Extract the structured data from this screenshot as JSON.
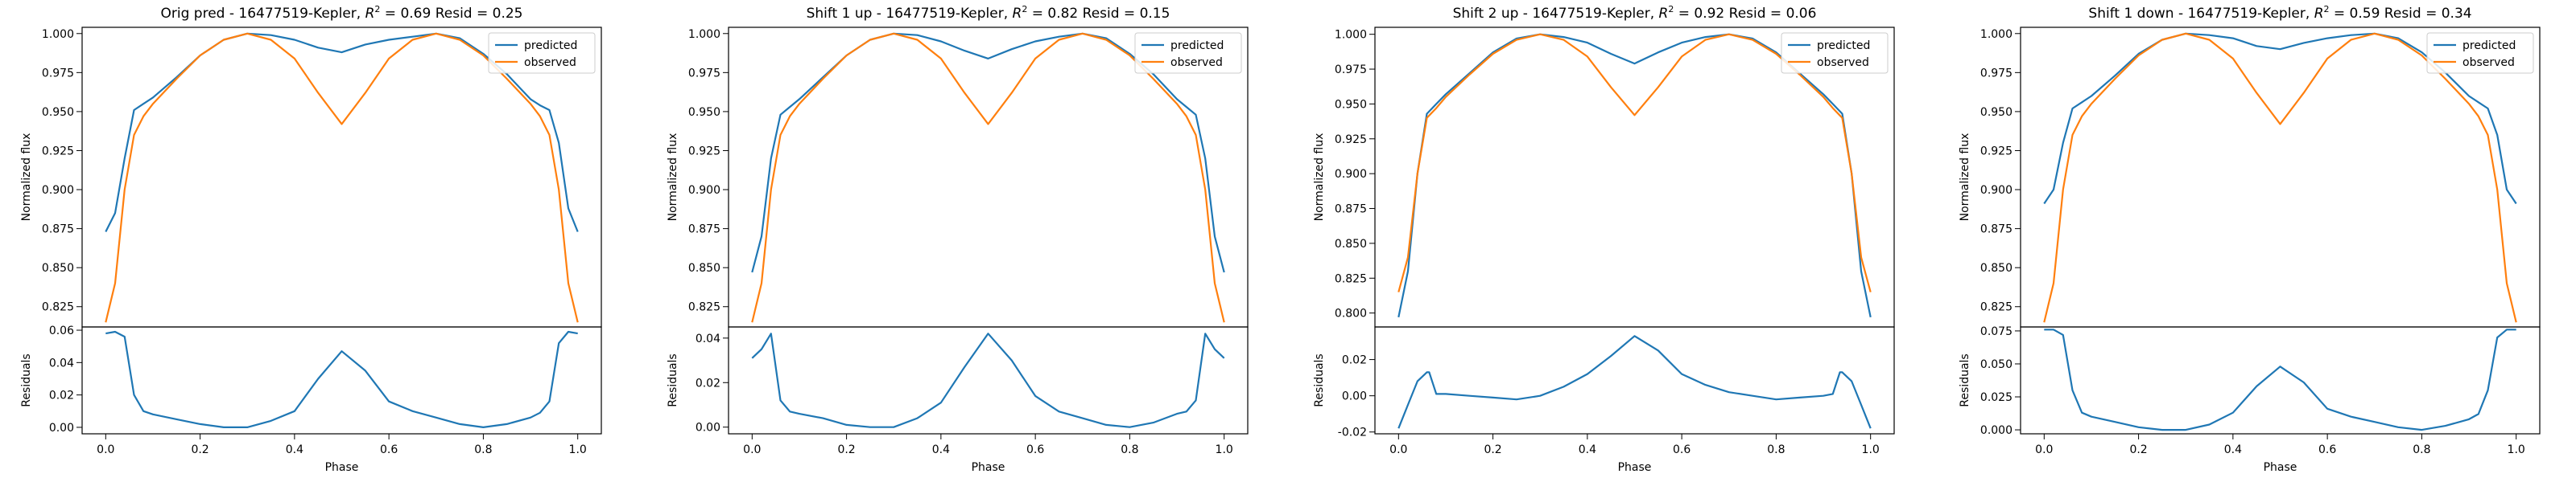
{
  "figure": {
    "phase_label": "Phase",
    "flux_label": "Normalized flux",
    "resid_label": "Residuals",
    "legend": [
      "predicted",
      "observed"
    ]
  },
  "colors": {
    "predicted": "#1f77b4",
    "observed": "#ff7f0e",
    "axes": "#000000"
  },
  "chart_data": [
    {
      "type": "line",
      "title": "Orig pred - 16477519-Kepler, R² = 0.69 Resid = 0.25",
      "title_parts": {
        "pre": "Orig pred - 16477519-Kepler, ",
        "r2": "= 0.69 Resid = 0.25"
      },
      "xlabel": "Phase",
      "ylabel": "Normalized flux",
      "xlim": [
        -0.05,
        1.05
      ],
      "xticks": [
        "0.0",
        "0.2",
        "0.4",
        "0.6",
        "0.8",
        "1.0"
      ],
      "ylim": [
        0.812,
        1.004
      ],
      "yticks": [
        "0.825",
        "0.850",
        "0.875",
        "0.900",
        "0.925",
        "0.950",
        "0.975",
        "1.000"
      ],
      "legend_position": "upper right",
      "x": [
        0.0,
        0.02,
        0.04,
        0.06,
        0.08,
        0.1,
        0.15,
        0.2,
        0.25,
        0.3,
        0.35,
        0.4,
        0.45,
        0.5,
        0.55,
        0.6,
        0.65,
        0.7,
        0.75,
        0.8,
        0.85,
        0.9,
        0.92,
        0.94,
        0.96,
        0.98,
        1.0
      ],
      "series": [
        {
          "name": "predicted",
          "values": [
            0.873,
            0.885,
            0.92,
            0.951,
            0.955,
            0.959,
            0.972,
            0.986,
            0.996,
            1.0,
            0.999,
            0.996,
            0.991,
            0.988,
            0.993,
            0.996,
            0.998,
            1.0,
            0.997,
            0.987,
            0.974,
            0.958,
            0.954,
            0.951,
            0.93,
            0.888,
            0.873
          ]
        },
        {
          "name": "observed",
          "values": [
            0.815,
            0.84,
            0.9,
            0.935,
            0.947,
            0.955,
            0.971,
            0.986,
            0.996,
            1.0,
            0.996,
            0.984,
            0.962,
            0.942,
            0.962,
            0.984,
            0.996,
            1.0,
            0.996,
            0.986,
            0.971,
            0.955,
            0.947,
            0.935,
            0.9,
            0.84,
            0.815
          ]
        }
      ],
      "residuals": {
        "ylabel": "Residuals",
        "ylim": [
          -0.004,
          0.062
        ],
        "yticks": [
          "0.00",
          "0.02",
          "0.04",
          "0.06"
        ],
        "x": [
          0.0,
          0.02,
          0.04,
          0.06,
          0.08,
          0.1,
          0.15,
          0.2,
          0.25,
          0.3,
          0.35,
          0.4,
          0.45,
          0.5,
          0.55,
          0.6,
          0.65,
          0.7,
          0.75,
          0.8,
          0.85,
          0.9,
          0.92,
          0.94,
          0.96,
          0.98,
          1.0
        ],
        "values": [
          0.058,
          0.059,
          0.056,
          0.02,
          0.01,
          0.008,
          0.005,
          0.002,
          0.0,
          0.0,
          0.004,
          0.01,
          0.03,
          0.047,
          0.035,
          0.016,
          0.01,
          0.006,
          0.002,
          0.0,
          0.002,
          0.006,
          0.009,
          0.016,
          0.052,
          0.059,
          0.058
        ]
      }
    },
    {
      "type": "line",
      "title": "Shift 1 up - 16477519-Kepler, R² = 0.82 Resid = 0.15",
      "title_parts": {
        "pre": "Shift 1 up - 16477519-Kepler, ",
        "r2": "= 0.82 Resid = 0.15"
      },
      "xlabel": "Phase",
      "ylabel": "Normalized flux",
      "xlim": [
        -0.05,
        1.05
      ],
      "xticks": [
        "0.0",
        "0.2",
        "0.4",
        "0.6",
        "0.8",
        "1.0"
      ],
      "ylim": [
        0.812,
        1.004
      ],
      "yticks": [
        "0.825",
        "0.850",
        "0.875",
        "0.900",
        "0.925",
        "0.950",
        "0.975",
        "1.000"
      ],
      "legend_position": "upper right",
      "x": [
        0.0,
        0.02,
        0.04,
        0.06,
        0.08,
        0.1,
        0.15,
        0.2,
        0.25,
        0.3,
        0.35,
        0.4,
        0.45,
        0.5,
        0.55,
        0.6,
        0.65,
        0.7,
        0.75,
        0.8,
        0.85,
        0.9,
        0.92,
        0.94,
        0.96,
        0.98,
        1.0
      ],
      "series": [
        {
          "name": "predicted",
          "values": [
            0.847,
            0.87,
            0.92,
            0.948,
            0.953,
            0.958,
            0.972,
            0.986,
            0.996,
            1.0,
            0.999,
            0.995,
            0.989,
            0.984,
            0.99,
            0.995,
            0.998,
            1.0,
            0.997,
            0.987,
            0.974,
            0.958,
            0.953,
            0.948,
            0.92,
            0.87,
            0.847
          ]
        },
        {
          "name": "observed",
          "values": [
            0.815,
            0.84,
            0.9,
            0.935,
            0.947,
            0.955,
            0.971,
            0.986,
            0.996,
            1.0,
            0.996,
            0.984,
            0.962,
            0.942,
            0.962,
            0.984,
            0.996,
            1.0,
            0.996,
            0.986,
            0.971,
            0.955,
            0.947,
            0.935,
            0.9,
            0.84,
            0.815
          ]
        }
      ],
      "residuals": {
        "ylabel": "Residuals",
        "ylim": [
          -0.003,
          0.045
        ],
        "yticks": [
          "0.00",
          "0.02",
          "0.04"
        ],
        "x": [
          0.0,
          0.02,
          0.04,
          0.06,
          0.08,
          0.1,
          0.15,
          0.2,
          0.25,
          0.3,
          0.35,
          0.4,
          0.45,
          0.5,
          0.55,
          0.6,
          0.65,
          0.7,
          0.75,
          0.8,
          0.85,
          0.9,
          0.92,
          0.94,
          0.96,
          0.98,
          1.0
        ],
        "values": [
          0.031,
          0.035,
          0.042,
          0.012,
          0.007,
          0.006,
          0.004,
          0.001,
          0.0,
          0.0,
          0.004,
          0.011,
          0.027,
          0.042,
          0.03,
          0.014,
          0.007,
          0.004,
          0.001,
          0.0,
          0.002,
          0.006,
          0.007,
          0.012,
          0.042,
          0.035,
          0.031
        ]
      }
    },
    {
      "type": "line",
      "title": "Shift 2 up - 16477519-Kepler, R² = 0.92 Resid = 0.06",
      "title_parts": {
        "pre": "Shift 2 up - 16477519-Kepler, ",
        "r2": "= 0.92 Resid = 0.06"
      },
      "xlabel": "Phase",
      "ylabel": "Normalized flux",
      "xlim": [
        -0.05,
        1.05
      ],
      "xticks": [
        "0.0",
        "0.2",
        "0.4",
        "0.6",
        "0.8",
        "1.0"
      ],
      "ylim": [
        0.79,
        1.005
      ],
      "yticks": [
        "0.800",
        "0.825",
        "0.850",
        "0.875",
        "0.900",
        "0.925",
        "0.950",
        "0.975",
        "1.000"
      ],
      "legend_position": "upper right",
      "x": [
        0.0,
        0.02,
        0.04,
        0.06,
        0.08,
        0.1,
        0.15,
        0.2,
        0.25,
        0.3,
        0.35,
        0.4,
        0.45,
        0.5,
        0.55,
        0.6,
        0.65,
        0.7,
        0.75,
        0.8,
        0.85,
        0.9,
        0.92,
        0.94,
        0.96,
        0.98,
        1.0
      ],
      "series": [
        {
          "name": "predicted",
          "values": [
            0.797,
            0.83,
            0.9,
            0.943,
            0.95,
            0.957,
            0.972,
            0.987,
            0.997,
            1.0,
            0.998,
            0.994,
            0.986,
            0.979,
            0.987,
            0.994,
            0.998,
            1.0,
            0.997,
            0.987,
            0.972,
            0.957,
            0.95,
            0.943,
            0.9,
            0.83,
            0.797
          ]
        },
        {
          "name": "observed",
          "values": [
            0.815,
            0.84,
            0.9,
            0.94,
            0.947,
            0.955,
            0.971,
            0.986,
            0.996,
            1.0,
            0.996,
            0.984,
            0.962,
            0.942,
            0.962,
            0.984,
            0.996,
            1.0,
            0.996,
            0.986,
            0.971,
            0.955,
            0.947,
            0.94,
            0.9,
            0.84,
            0.815
          ]
        }
      ],
      "residuals": {
        "ylabel": "Residuals",
        "ylim": [
          -0.021,
          0.038
        ],
        "yticks": [
          "-0.02",
          "0.00",
          "0.02"
        ],
        "x": [
          0.0,
          0.02,
          0.04,
          0.06,
          0.065,
          0.08,
          0.1,
          0.15,
          0.2,
          0.25,
          0.3,
          0.35,
          0.4,
          0.45,
          0.5,
          0.55,
          0.6,
          0.65,
          0.7,
          0.75,
          0.8,
          0.85,
          0.9,
          0.92,
          0.935,
          0.94,
          0.96,
          0.98,
          1.0
        ],
        "values": [
          -0.018,
          -0.005,
          0.008,
          0.013,
          0.013,
          0.001,
          0.001,
          0.0,
          -0.001,
          -0.002,
          0.0,
          0.005,
          0.012,
          0.022,
          0.033,
          0.025,
          0.012,
          0.006,
          0.002,
          0.0,
          -0.002,
          -0.001,
          0.0,
          0.001,
          0.013,
          0.013,
          0.008,
          -0.005,
          -0.018
        ]
      }
    },
    {
      "type": "line",
      "title": "Shift 1 down - 16477519-Kepler, R² = 0.59 Resid = 0.34",
      "title_parts": {
        "pre": "Shift 1 down - 16477519-Kepler, ",
        "r2": "= 0.59 Resid = 0.34"
      },
      "xlabel": "Phase",
      "ylabel": "Normalized flux",
      "xlim": [
        -0.05,
        1.05
      ],
      "xticks": [
        "0.0",
        "0.2",
        "0.4",
        "0.6",
        "0.8",
        "1.0"
      ],
      "ylim": [
        0.812,
        1.004
      ],
      "yticks": [
        "0.825",
        "0.850",
        "0.875",
        "0.900",
        "0.925",
        "0.950",
        "0.975",
        "1.000"
      ],
      "legend_position": "upper right",
      "x": [
        0.0,
        0.02,
        0.04,
        0.06,
        0.08,
        0.1,
        0.15,
        0.2,
        0.25,
        0.3,
        0.35,
        0.4,
        0.45,
        0.5,
        0.55,
        0.6,
        0.65,
        0.7,
        0.75,
        0.8,
        0.85,
        0.9,
        0.92,
        0.94,
        0.96,
        0.98,
        1.0
      ],
      "series": [
        {
          "name": "predicted",
          "values": [
            0.891,
            0.9,
            0.93,
            0.952,
            0.956,
            0.96,
            0.973,
            0.987,
            0.996,
            1.0,
            0.999,
            0.997,
            0.992,
            0.99,
            0.994,
            0.997,
            0.999,
            1.0,
            0.997,
            0.988,
            0.975,
            0.96,
            0.956,
            0.952,
            0.935,
            0.9,
            0.891
          ]
        },
        {
          "name": "observed",
          "values": [
            0.815,
            0.84,
            0.9,
            0.935,
            0.947,
            0.955,
            0.971,
            0.986,
            0.996,
            1.0,
            0.996,
            0.984,
            0.962,
            0.942,
            0.962,
            0.984,
            0.996,
            1.0,
            0.996,
            0.986,
            0.971,
            0.955,
            0.947,
            0.935,
            0.9,
            0.84,
            0.815
          ]
        }
      ],
      "residuals": {
        "ylabel": "Residuals",
        "ylim": [
          -0.003,
          0.078
        ],
        "yticks": [
          "0.000",
          "0.025",
          "0.050",
          "0.075"
        ],
        "x": [
          0.0,
          0.02,
          0.04,
          0.06,
          0.08,
          0.1,
          0.15,
          0.2,
          0.25,
          0.3,
          0.35,
          0.4,
          0.45,
          0.5,
          0.55,
          0.6,
          0.65,
          0.7,
          0.75,
          0.8,
          0.85,
          0.9,
          0.92,
          0.94,
          0.96,
          0.98,
          1.0
        ],
        "values": [
          0.076,
          0.076,
          0.072,
          0.03,
          0.013,
          0.01,
          0.006,
          0.002,
          0.0,
          0.0,
          0.004,
          0.013,
          0.033,
          0.048,
          0.036,
          0.016,
          0.01,
          0.006,
          0.002,
          0.0,
          0.003,
          0.008,
          0.012,
          0.03,
          0.07,
          0.076,
          0.076
        ]
      }
    }
  ]
}
